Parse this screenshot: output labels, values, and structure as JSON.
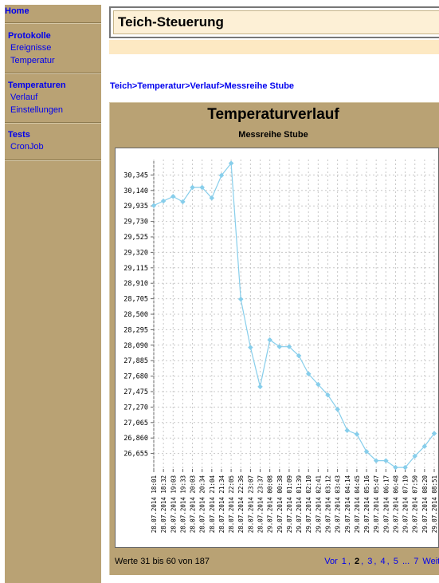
{
  "sidebar": {
    "home": "Home",
    "groups": [
      {
        "title": "Protokolle",
        "items": [
          "Ereignisse",
          "Temperatur"
        ]
      },
      {
        "title": "Temperaturen",
        "items": [
          "Verlauf",
          "Einstellungen"
        ]
      },
      {
        "title": "Tests",
        "items": [
          "CronJob"
        ]
      }
    ]
  },
  "header": {
    "title": "Teich-Steuerung"
  },
  "breadcrumb": [
    "Teich",
    "Temperatur",
    "Verlauf",
    "Messreihe Stube"
  ],
  "breadcrumb_sep": ">",
  "chart_data": {
    "type": "line",
    "title": "Temperaturverlauf",
    "subtitle": "Messreihe Stube",
    "ylim": [
      26.45,
      30.55
    ],
    "y_ticks": [
      "30,345",
      "30,140",
      "29,935",
      "29,730",
      "29,525",
      "29,320",
      "29,115",
      "28,910",
      "28,705",
      "28,500",
      "28,295",
      "28,090",
      "27,885",
      "27,680",
      "27,475",
      "27,270",
      "27,065",
      "26,860",
      "26,655"
    ],
    "y_tick_values": [
      30.345,
      30.14,
      29.935,
      29.73,
      29.525,
      29.32,
      29.115,
      28.91,
      28.705,
      28.5,
      28.295,
      28.09,
      27.885,
      27.68,
      27.475,
      27.27,
      27.065,
      26.86,
      26.655
    ],
    "grid": true,
    "color": "#87ceeb",
    "x": [
      "28.07.2014 18:01",
      "28.07.2014 18:32",
      "28.07.2014 19:03",
      "28.07.2014 19:33",
      "28.07.2014 20:03",
      "28.07.2014 20:34",
      "28.07.2014 21:04",
      "28.07.2014 21:34",
      "28.07.2014 22:05",
      "28.07.2014 22:36",
      "28.07.2014 23:07",
      "28.07.2014 23:37",
      "29.07.2014 00:08",
      "29.07.2014 00:38",
      "29.07.2014 01:09",
      "29.07.2014 01:39",
      "29.07.2014 02:10",
      "29.07.2014 02:41",
      "29.07.2014 03:12",
      "29.07.2014 03:43",
      "29.07.2014 04:14",
      "29.07.2014 04:45",
      "29.07.2014 05:16",
      "29.07.2014 05:47",
      "29.07.2014 06:17",
      "29.07.2014 06:48",
      "29.07.2014 07:19",
      "29.07.2014 07:50",
      "29.07.2014 08:20",
      "29.07.2014 08:51"
    ],
    "values": [
      29.94,
      30.0,
      30.06,
      29.99,
      30.18,
      30.18,
      30.04,
      30.34,
      30.5,
      28.7,
      28.06,
      27.54,
      28.16,
      28.07,
      28.07,
      27.95,
      27.71,
      27.57,
      27.43,
      27.24,
      26.96,
      26.91,
      26.68,
      26.56,
      26.56,
      26.47,
      26.47,
      26.62,
      26.75,
      26.92
    ]
  },
  "footer": {
    "count_text": "Werte 31 bis 60 von 187"
  },
  "pager": {
    "prev": "Vor",
    "pages": [
      "1",
      "2",
      "3",
      "4",
      "5"
    ],
    "current": "2",
    "ellipsis": "...",
    "last": "7",
    "next": "Weiter"
  }
}
